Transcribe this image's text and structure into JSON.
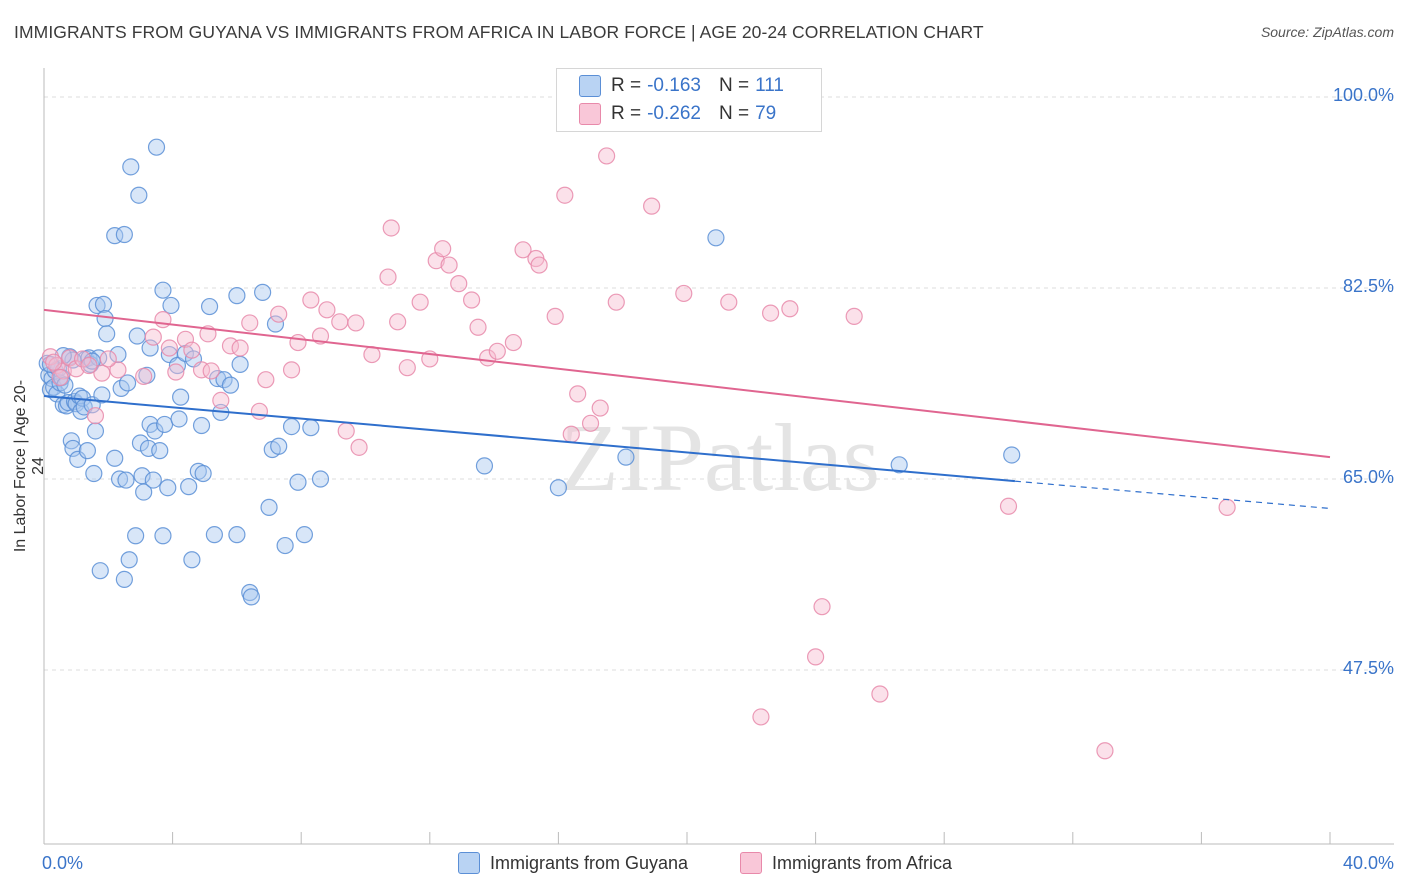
{
  "title": "IMMIGRANTS FROM GUYANA VS IMMIGRANTS FROM AFRICA IN LABOR FORCE | AGE 20-24 CORRELATION CHART",
  "source": "Source: ZipAtlas.com",
  "watermark": "ZIPatlas",
  "legend": {
    "r_label": "R =",
    "n_label": "N =",
    "guyana": {
      "r": "-0.163",
      "n": "111"
    },
    "africa": {
      "r": "-0.262",
      "n": "79"
    }
  },
  "colors": {
    "guyana_fill": "#a9c8f0",
    "guyana_stroke": "#5b8fd6",
    "guyana_line": "#2f6fcc",
    "africa_fill": "#f7bcd0",
    "africa_stroke": "#e889aa",
    "africa_line": "#e06590",
    "tick_text": "#3a74c9",
    "grid": "#dcdcdc"
  },
  "chart_data": {
    "type": "scatter",
    "title": "IMMIGRANTS FROM GUYANA VS IMMIGRANTS FROM AFRICA IN LABOR FORCE | AGE 20-24 CORRELATION CHART",
    "xlabel": "",
    "ylabel": "In Labor Force | Age 20-24",
    "xlim": [
      0,
      40
    ],
    "ylim": [
      34,
      102
    ],
    "x_tick_labels": [
      "0.0%",
      "40.0%"
    ],
    "y_ticks": [
      47.5,
      65.0,
      82.5,
      100.0
    ],
    "y_tick_labels": [
      "47.5%",
      "65.0%",
      "82.5%",
      "100.0%"
    ],
    "series": [
      {
        "name": "Immigrants from Guyana",
        "r": -0.163,
        "n": 111,
        "trend": {
          "x0": 0,
          "y0": 72.6,
          "x1": 30.2,
          "y1": 64.8,
          "dash_to_x": 40,
          "dash_to_y": 62.3
        },
        "points": [
          [
            0.1,
            75.6
          ],
          [
            0.15,
            74.5
          ],
          [
            0.2,
            73.2
          ],
          [
            0.25,
            74.2
          ],
          [
            0.3,
            73.4
          ],
          [
            0.35,
            74.9
          ],
          [
            0.4,
            72.8
          ],
          [
            0.45,
            75.1
          ],
          [
            0.5,
            73.8
          ],
          [
            0.55,
            74.3
          ],
          [
            0.6,
            71.8
          ],
          [
            0.65,
            73.6
          ],
          [
            0.7,
            71.7
          ],
          [
            0.75,
            72.0
          ],
          [
            0.8,
            76.2
          ],
          [
            0.85,
            68.5
          ],
          [
            0.9,
            67.8
          ],
          [
            0.95,
            72.1
          ],
          [
            1.0,
            71.9
          ],
          [
            1.05,
            66.8
          ],
          [
            1.1,
            72.6
          ],
          [
            1.15,
            71.2
          ],
          [
            1.2,
            72.4
          ],
          [
            1.25,
            71.6
          ],
          [
            1.3,
            76.0
          ],
          [
            1.35,
            67.6
          ],
          [
            1.4,
            76.1
          ],
          [
            1.45,
            75.5
          ],
          [
            1.5,
            71.8
          ],
          [
            1.55,
            65.5
          ],
          [
            1.6,
            69.4
          ],
          [
            1.65,
            80.9
          ],
          [
            1.7,
            76.1
          ],
          [
            1.75,
            56.6
          ],
          [
            1.8,
            72.7
          ],
          [
            1.85,
            81.0
          ],
          [
            1.9,
            79.7
          ],
          [
            1.95,
            78.3
          ],
          [
            2.2,
            87.3
          ],
          [
            2.2,
            66.9
          ],
          [
            2.3,
            76.4
          ],
          [
            2.35,
            65.0
          ],
          [
            2.4,
            73.3
          ],
          [
            2.5,
            55.8
          ],
          [
            2.5,
            87.4
          ],
          [
            2.55,
            64.9
          ],
          [
            2.65,
            57.6
          ],
          [
            2.7,
            93.6
          ],
          [
            2.85,
            59.8
          ],
          [
            2.9,
            78.1
          ],
          [
            2.95,
            91.0
          ],
          [
            3.0,
            68.3
          ],
          [
            3.05,
            65.3
          ],
          [
            3.1,
            63.8
          ],
          [
            3.25,
            67.8
          ],
          [
            3.3,
            70.0
          ],
          [
            3.3,
            77.0
          ],
          [
            3.4,
            64.9
          ],
          [
            3.45,
            69.4
          ],
          [
            3.5,
            95.4
          ],
          [
            3.6,
            67.6
          ],
          [
            3.7,
            82.3
          ],
          [
            3.7,
            59.8
          ],
          [
            3.75,
            70.0
          ],
          [
            3.85,
            64.2
          ],
          [
            3.9,
            76.4
          ],
          [
            3.95,
            80.9
          ],
          [
            4.15,
            75.4
          ],
          [
            4.2,
            70.5
          ],
          [
            4.25,
            72.5
          ],
          [
            4.4,
            76.5
          ],
          [
            4.5,
            64.3
          ],
          [
            4.6,
            57.6
          ],
          [
            4.65,
            76.0
          ],
          [
            4.8,
            65.7
          ],
          [
            4.9,
            69.9
          ],
          [
            4.95,
            65.5
          ],
          [
            5.15,
            80.8
          ],
          [
            5.3,
            59.9
          ],
          [
            5.4,
            74.2
          ],
          [
            5.5,
            71.1
          ],
          [
            5.6,
            74.1
          ],
          [
            5.8,
            73.6
          ],
          [
            6.0,
            81.8
          ],
          [
            6.0,
            59.9
          ],
          [
            6.1,
            75.5
          ],
          [
            6.4,
            54.6
          ],
          [
            6.45,
            54.2
          ],
          [
            6.8,
            82.1
          ],
          [
            7.2,
            79.2
          ],
          [
            7.0,
            62.4
          ],
          [
            7.1,
            67.7
          ],
          [
            7.3,
            68.0
          ],
          [
            7.5,
            58.9
          ],
          [
            7.7,
            69.8
          ],
          [
            7.9,
            64.7
          ],
          [
            8.1,
            59.9
          ],
          [
            8.3,
            69.7
          ],
          [
            8.6,
            65.0
          ],
          [
            13.7,
            66.2
          ],
          [
            16.0,
            64.2
          ],
          [
            18.1,
            67.0
          ],
          [
            20.9,
            87.1
          ],
          [
            26.6,
            66.3
          ],
          [
            30.1,
            67.2
          ],
          [
            0.2,
            75.5
          ],
          [
            0.9,
            75.9
          ],
          [
            1.5,
            75.8
          ],
          [
            2.6,
            73.8
          ],
          [
            3.2,
            74.5
          ],
          [
            0.6,
            76.3
          ]
        ]
      },
      {
        "name": "Immigrants from Africa",
        "r": -0.262,
        "n": 79,
        "trend": {
          "x0": 0,
          "y0": 80.5,
          "x1": 40,
          "y1": 67.0
        },
        "points": [
          [
            0.2,
            76.2
          ],
          [
            0.4,
            75.4
          ],
          [
            0.6,
            74.9
          ],
          [
            0.8,
            76.1
          ],
          [
            1.0,
            75.1
          ],
          [
            1.2,
            76.0
          ],
          [
            1.6,
            70.8
          ],
          [
            1.8,
            74.7
          ],
          [
            2.3,
            75.0
          ],
          [
            3.1,
            74.4
          ],
          [
            3.7,
            79.6
          ],
          [
            3.9,
            77.0
          ],
          [
            4.1,
            74.8
          ],
          [
            4.4,
            77.8
          ],
          [
            4.6,
            76.8
          ],
          [
            4.9,
            75.0
          ],
          [
            5.1,
            78.3
          ],
          [
            5.5,
            72.2
          ],
          [
            5.8,
            77.2
          ],
          [
            6.1,
            77.0
          ],
          [
            6.4,
            79.3
          ],
          [
            6.7,
            71.2
          ],
          [
            6.9,
            74.1
          ],
          [
            7.3,
            80.1
          ],
          [
            7.7,
            75.0
          ],
          [
            7.9,
            77.5
          ],
          [
            8.3,
            81.4
          ],
          [
            8.6,
            78.1
          ],
          [
            8.8,
            80.5
          ],
          [
            9.2,
            79.4
          ],
          [
            9.4,
            69.4
          ],
          [
            9.7,
            79.3
          ],
          [
            9.8,
            67.9
          ],
          [
            10.2,
            76.4
          ],
          [
            10.7,
            83.5
          ],
          [
            10.8,
            88.0
          ],
          [
            11.0,
            79.4
          ],
          [
            11.3,
            75.2
          ],
          [
            11.7,
            81.2
          ],
          [
            12.0,
            76.0
          ],
          [
            12.2,
            85.0
          ],
          [
            12.4,
            86.1
          ],
          [
            12.6,
            84.6
          ],
          [
            12.9,
            82.9
          ],
          [
            13.3,
            81.4
          ],
          [
            13.5,
            78.9
          ],
          [
            13.8,
            76.1
          ],
          [
            14.1,
            76.7
          ],
          [
            14.6,
            77.5
          ],
          [
            14.9,
            86.0
          ],
          [
            15.3,
            85.2
          ],
          [
            15.4,
            84.6
          ],
          [
            15.9,
            79.9
          ],
          [
            16.2,
            91.0
          ],
          [
            16.4,
            69.1
          ],
          [
            16.6,
            72.8
          ],
          [
            17.0,
            70.1
          ],
          [
            17.3,
            71.5
          ],
          [
            17.5,
            94.6
          ],
          [
            17.8,
            81.2
          ],
          [
            18.9,
            90.0
          ],
          [
            19.9,
            82.0
          ],
          [
            21.3,
            81.2
          ],
          [
            22.6,
            80.2
          ],
          [
            23.2,
            80.6
          ],
          [
            24.2,
            53.3
          ],
          [
            24.0,
            48.7
          ],
          [
            25.2,
            79.9
          ],
          [
            26.0,
            45.3
          ],
          [
            22.3,
            43.2
          ],
          [
            30.0,
            62.5
          ],
          [
            33.0,
            40.1
          ],
          [
            36.8,
            62.4
          ],
          [
            0.3,
            75.7
          ],
          [
            0.5,
            74.3
          ],
          [
            1.4,
            75.4
          ],
          [
            2.0,
            76.0
          ],
          [
            3.4,
            78.0
          ],
          [
            5.2,
            74.9
          ]
        ]
      }
    ]
  },
  "bottom_legend": {
    "guyana": "Immigrants from Guyana",
    "africa": "Immigrants from Africa"
  }
}
